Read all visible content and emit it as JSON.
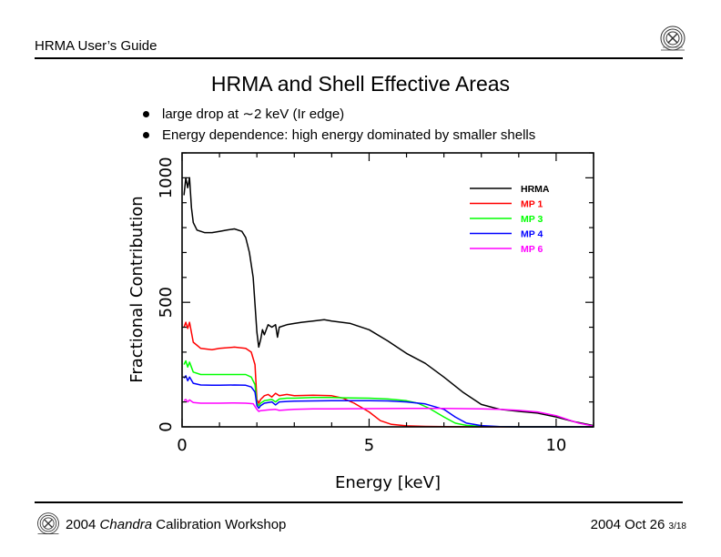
{
  "header": {
    "title": "HRMA User’s Guide",
    "logo_icon": "chandra-logo-icon"
  },
  "slide": {
    "title": "HRMA and Shell Effective Areas",
    "bullets": [
      "large drop at ∼2 keV (Ir edge)",
      "Energy dependence: high energy dominated by smaller shells"
    ]
  },
  "footer": {
    "year": "2004",
    "mission": "Chandra",
    "event": "Calibration Workshop",
    "date": "2004 Oct 26",
    "page": "3/18",
    "logo_icon": "chandra-logo-icon"
  },
  "chart_data": {
    "type": "line",
    "title": "",
    "xlabel": "Energy [keV]",
    "ylabel": "Fractional Contribution",
    "xlim": [
      0,
      11
    ],
    "ylim": [
      0,
      1100
    ],
    "x_major_ticks": [
      0,
      5,
      10
    ],
    "x_tick_labels": [
      "0",
      "5",
      "10"
    ],
    "x_minor_step": 1,
    "y_major_ticks": [
      0,
      500,
      1000
    ],
    "y_tick_labels": [
      "0",
      "500",
      "1000"
    ],
    "y_minor_step": 100,
    "grid": false,
    "legend_position": "top-right",
    "series": [
      {
        "name": "HRMA",
        "color": "#000000",
        "x": [
          0.05,
          0.1,
          0.15,
          0.2,
          0.25,
          0.3,
          0.4,
          0.6,
          0.8,
          1.0,
          1.2,
          1.4,
          1.6,
          1.7,
          1.8,
          1.9,
          2.0,
          2.05,
          2.1,
          2.15,
          2.2,
          2.3,
          2.4,
          2.5,
          2.55,
          2.6,
          2.8,
          3.0,
          3.2,
          3.5,
          3.8,
          4.0,
          4.5,
          5.0,
          5.5,
          6.0,
          6.5,
          7.0,
          7.5,
          8.0,
          8.5,
          9.0,
          9.5,
          10.0,
          10.5,
          11.0
        ],
        "y": [
          930,
          1000,
          960,
          1000,
          880,
          820,
          790,
          780,
          780,
          785,
          790,
          795,
          785,
          760,
          700,
          600,
          380,
          320,
          350,
          390,
          370,
          410,
          400,
          410,
          360,
          400,
          410,
          415,
          420,
          425,
          430,
          425,
          415,
          390,
          345,
          295,
          255,
          200,
          140,
          90,
          70,
          62,
          55,
          40,
          20,
          5
        ]
      },
      {
        "name": "MP 1",
        "color": "#ff0000",
        "x": [
          0.05,
          0.1,
          0.15,
          0.2,
          0.3,
          0.5,
          0.8,
          1.0,
          1.4,
          1.7,
          1.85,
          1.95,
          2.0,
          2.05,
          2.1,
          2.2,
          2.3,
          2.4,
          2.5,
          2.6,
          2.8,
          3.0,
          3.5,
          4.0,
          4.3,
          4.6,
          5.0,
          5.3,
          5.6,
          6.0,
          6.5,
          7.0,
          8.0,
          9.0,
          10.0,
          11.0
        ],
        "y": [
          400,
          420,
          395,
          420,
          340,
          315,
          310,
          315,
          320,
          315,
          300,
          250,
          110,
          95,
          110,
          125,
          130,
          120,
          135,
          125,
          130,
          125,
          127,
          125,
          115,
          95,
          60,
          25,
          10,
          4,
          2,
          1,
          0,
          0,
          0,
          0
        ]
      },
      {
        "name": "MP 3",
        "color": "#00ff00",
        "x": [
          0.05,
          0.1,
          0.15,
          0.2,
          0.3,
          0.5,
          0.8,
          1.0,
          1.4,
          1.7,
          1.85,
          1.95,
          2.0,
          2.05,
          2.1,
          2.2,
          2.4,
          2.5,
          2.6,
          2.8,
          3.0,
          3.5,
          4.0,
          4.5,
          5.0,
          5.5,
          6.0,
          6.3,
          6.6,
          7.0,
          7.3,
          7.6,
          8.0,
          9.0,
          10.0,
          11.0
        ],
        "y": [
          250,
          265,
          240,
          260,
          220,
          210,
          210,
          210,
          210,
          210,
          200,
          170,
          95,
          85,
          95,
          105,
          110,
          100,
          112,
          115,
          115,
          118,
          118,
          116,
          115,
          112,
          105,
          95,
          75,
          40,
          15,
          6,
          2,
          0,
          0,
          0
        ]
      },
      {
        "name": "MP 4",
        "color": "#0000ff",
        "x": [
          0.05,
          0.1,
          0.15,
          0.2,
          0.3,
          0.5,
          0.8,
          1.0,
          1.4,
          1.7,
          1.85,
          1.95,
          2.0,
          2.05,
          2.1,
          2.2,
          2.4,
          2.5,
          2.6,
          2.8,
          3.0,
          3.5,
          4.0,
          4.5,
          5.0,
          5.5,
          6.0,
          6.5,
          7.0,
          7.3,
          7.6,
          8.0,
          8.5,
          9.0,
          10.0,
          11.0
        ],
        "y": [
          195,
          205,
          185,
          200,
          175,
          168,
          167,
          167,
          168,
          167,
          160,
          140,
          85,
          75,
          85,
          95,
          100,
          88,
          100,
          102,
          103,
          104,
          105,
          105,
          105,
          104,
          100,
          92,
          70,
          40,
          15,
          5,
          1,
          0,
          0,
          0
        ]
      },
      {
        "name": "MP 6",
        "color": "#ff00ff",
        "x": [
          0.05,
          0.1,
          0.15,
          0.2,
          0.3,
          0.5,
          0.8,
          1.0,
          1.4,
          1.7,
          1.9,
          2.0,
          2.05,
          2.1,
          2.3,
          2.5,
          2.6,
          3.0,
          3.5,
          4.0,
          5.0,
          6.0,
          7.0,
          8.0,
          8.5,
          9.0,
          9.5,
          10.0,
          10.3,
          10.6,
          11.0
        ],
        "y": [
          105,
          110,
          100,
          108,
          98,
          95,
          95,
          95,
          96,
          95,
          93,
          70,
          62,
          65,
          68,
          70,
          66,
          70,
          72,
          72,
          73,
          74,
          74,
          72,
          70,
          66,
          60,
          45,
          30,
          15,
          3
        ]
      }
    ]
  }
}
